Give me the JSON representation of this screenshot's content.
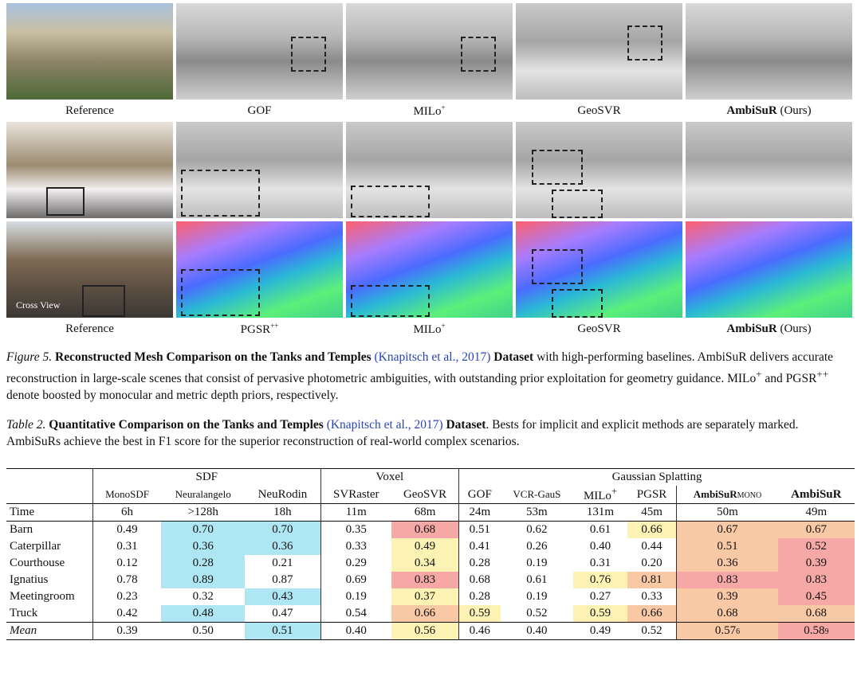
{
  "figure": {
    "row1_labels": [
      "Reference",
      "GOF",
      "MILo",
      "GeoSVR",
      "AmbiSuR",
      " (Ours)"
    ],
    "row1_sup": "+",
    "row2_labels": [
      "Reference",
      "PGSR",
      "MILo",
      "GeoSVR",
      "AmbiSuR",
      " (Ours)"
    ],
    "pgsr_sup": "++",
    "milo_sup": "+",
    "cross_view": "Cross View",
    "caption_label": "Figure 5.",
    "caption_title": "Reconstructed Mesh Comparison on the Tanks and Temples",
    "caption_cite": "(Knapitsch et al., 2017)",
    "caption_title2": "Dataset",
    "caption_text1": " with high-performing baselines.",
    "caption_text2": "AmbiSuR delivers accurate reconstruction in large-scale scenes that consist of pervasive photometric ambiguities, with outstanding prior exploitation for geometry guidance. MILo",
    "caption_sup1": "+",
    "caption_text3": " and PGSR",
    "caption_sup2": "++",
    "caption_text4": " denote boosted by monocular and metric depth priors, respectively."
  },
  "table": {
    "caption_label": "Table 2.",
    "caption_title": "Quantitative Comparison on the Tanks and Temples",
    "caption_cite": "(Knapitsch et al., 2017)",
    "caption_title2": "Dataset",
    "caption_text": ". Bests for implicit and explicit methods are separately marked. AmbiSuRs achieve the best in F1 score for the superior reconstruction of real-world complex scenarios.",
    "group_sdf": "SDF",
    "group_voxel": "Voxel",
    "group_gs": "Gaussian Splatting",
    "methods": [
      "MonoSDF",
      "Neuralangelo",
      "NeuRodin",
      "SVRaster",
      "GeoSVR",
      "GOF",
      "VCR-GauS",
      "MILo",
      "PGSR",
      "AmbiSuR",
      "AmbiSuR"
    ],
    "milo_sup": "+",
    "mono_suffix": "MONO",
    "time_label": "Time",
    "times": [
      "6h",
      ">128h",
      "18h",
      "11m",
      "68m",
      "24m",
      "53m",
      "131m",
      "45m",
      "50m",
      "49m"
    ],
    "rows": [
      {
        "name": "Barn",
        "values": [
          "0.49",
          "0.70",
          "0.70",
          "0.35",
          "0.68",
          "0.51",
          "0.62",
          "0.61",
          "0.66",
          "0.67",
          "0.67"
        ]
      },
      {
        "name": "Caterpillar",
        "values": [
          "0.31",
          "0.36",
          "0.36",
          "0.33",
          "0.49",
          "0.41",
          "0.26",
          "0.40",
          "0.44",
          "0.51",
          "0.52"
        ]
      },
      {
        "name": "Courthouse",
        "values": [
          "0.12",
          "0.28",
          "0.21",
          "0.29",
          "0.34",
          "0.28",
          "0.19",
          "0.31",
          "0.20",
          "0.36",
          "0.39"
        ]
      },
      {
        "name": "Ignatius",
        "values": [
          "0.78",
          "0.89",
          "0.87",
          "0.69",
          "0.83",
          "0.68",
          "0.61",
          "0.76",
          "0.81",
          "0.83",
          "0.83"
        ]
      },
      {
        "name": "Meetingroom",
        "values": [
          "0.23",
          "0.32",
          "0.43",
          "0.19",
          "0.37",
          "0.28",
          "0.19",
          "0.27",
          "0.33",
          "0.39",
          "0.45"
        ]
      },
      {
        "name": "Truck",
        "values": [
          "0.42",
          "0.48",
          "0.47",
          "0.54",
          "0.66",
          "0.59",
          "0.52",
          "0.59",
          "0.66",
          "0.68",
          "0.68"
        ]
      }
    ],
    "mean_label": "Mean",
    "mean_values": [
      "0.39",
      "0.50",
      "0.51",
      "0.40",
      "0.56",
      "0.46",
      "0.40",
      "0.49",
      "0.52",
      "0.57",
      "0.58"
    ],
    "mean_extra": [
      "6",
      "9"
    ],
    "colors": {
      "blue": "#aee7f3",
      "red": "#f5a8a6",
      "yellow": "#fbf2b3",
      "orange": "#f9c9a6"
    }
  }
}
